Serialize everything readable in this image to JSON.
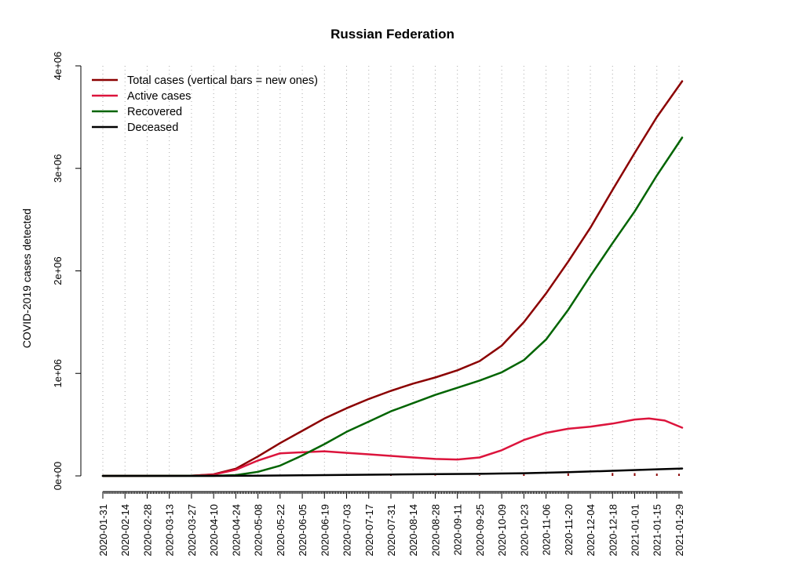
{
  "chart_data": {
    "type": "line",
    "title": "Russian Federation",
    "xlabel": "",
    "ylabel": "COVID-2019 cases detected",
    "xlim": [
      "2020-01-31",
      "2021-01-31"
    ],
    "ylim": [
      0,
      4000000
    ],
    "y_ticks": [
      {
        "value": 0,
        "label": "0e+00"
      },
      {
        "value": 1000000,
        "label": "1e+06"
      },
      {
        "value": 2000000,
        "label": "2e+06"
      },
      {
        "value": 3000000,
        "label": "3e+06"
      },
      {
        "value": 4000000,
        "label": "4e+06"
      }
    ],
    "x_tick_labels": [
      "2020-01-31",
      "2020-02-14",
      "2020-02-28",
      "2020-03-13",
      "2020-03-27",
      "2020-04-10",
      "2020-04-24",
      "2020-05-08",
      "2020-05-22",
      "2020-06-05",
      "2020-06-19",
      "2020-07-03",
      "2020-07-17",
      "2020-07-31",
      "2020-08-14",
      "2020-08-28",
      "2020-09-11",
      "2020-09-25",
      "2020-10-09",
      "2020-10-23",
      "2020-11-06",
      "2020-11-20",
      "2020-12-04",
      "2020-12-18",
      "2021-01-01",
      "2021-01-15",
      "2021-01-29"
    ],
    "grid": "vertical dotted",
    "legend_position": "top-left",
    "series": [
      {
        "name": "Total cases (vertical bars = new ones)",
        "color": "#8B0000",
        "x": [
          "2020-01-31",
          "2020-03-27",
          "2020-04-10",
          "2020-04-24",
          "2020-05-08",
          "2020-05-22",
          "2020-06-05",
          "2020-06-19",
          "2020-07-03",
          "2020-07-17",
          "2020-07-31",
          "2020-08-14",
          "2020-08-28",
          "2020-09-11",
          "2020-09-25",
          "2020-10-09",
          "2020-10-23",
          "2020-11-06",
          "2020-11-20",
          "2020-12-04",
          "2020-12-18",
          "2021-01-01",
          "2021-01-15",
          "2021-01-31"
        ],
        "y": [
          0,
          1500,
          15000,
          70000,
          190000,
          320000,
          440000,
          560000,
          660000,
          750000,
          830000,
          900000,
          960000,
          1030000,
          1120000,
          1270000,
          1500000,
          1780000,
          2090000,
          2420000,
          2790000,
          3150000,
          3500000,
          3850000
        ]
      },
      {
        "name": "Active cases",
        "color": "#DC143C",
        "x": [
          "2020-01-31",
          "2020-03-27",
          "2020-04-10",
          "2020-04-24",
          "2020-05-08",
          "2020-05-22",
          "2020-06-05",
          "2020-06-19",
          "2020-07-03",
          "2020-07-17",
          "2020-07-31",
          "2020-08-14",
          "2020-08-28",
          "2020-09-11",
          "2020-09-25",
          "2020-10-09",
          "2020-10-23",
          "2020-11-06",
          "2020-11-20",
          "2020-12-04",
          "2020-12-18",
          "2021-01-01",
          "2021-01-10",
          "2021-01-20",
          "2021-01-31"
        ],
        "y": [
          0,
          1300,
          13000,
          60000,
          150000,
          220000,
          230000,
          240000,
          225000,
          210000,
          195000,
          180000,
          165000,
          160000,
          180000,
          250000,
          350000,
          420000,
          460000,
          480000,
          510000,
          550000,
          560000,
          540000,
          470000
        ]
      },
      {
        "name": "Recovered",
        "color": "#006400",
        "x": [
          "2020-01-31",
          "2020-04-10",
          "2020-04-24",
          "2020-05-08",
          "2020-05-22",
          "2020-06-05",
          "2020-06-19",
          "2020-07-03",
          "2020-07-17",
          "2020-07-31",
          "2020-08-14",
          "2020-08-28",
          "2020-09-11",
          "2020-09-25",
          "2020-10-09",
          "2020-10-23",
          "2020-11-06",
          "2020-11-20",
          "2020-12-04",
          "2020-12-18",
          "2021-01-01",
          "2021-01-15",
          "2021-01-31"
        ],
        "y": [
          0,
          1000,
          8000,
          40000,
          100000,
          200000,
          310000,
          430000,
          530000,
          630000,
          710000,
          790000,
          860000,
          930000,
          1010000,
          1130000,
          1330000,
          1620000,
          1950000,
          2270000,
          2580000,
          2930000,
          3300000
        ]
      },
      {
        "name": "Deceased",
        "color": "#000000",
        "x": [
          "2020-01-31",
          "2020-04-10",
          "2020-05-08",
          "2020-06-05",
          "2020-07-03",
          "2020-07-31",
          "2020-08-28",
          "2020-09-25",
          "2020-10-23",
          "2020-11-20",
          "2020-12-18",
          "2021-01-15",
          "2021-01-31"
        ],
        "y": [
          0,
          100,
          2000,
          6000,
          10000,
          14000,
          17000,
          20000,
          26000,
          36000,
          50000,
          64000,
          72000
        ]
      }
    ],
    "new_cases_bars": {
      "color": "#8B0000",
      "x": [
        "2020-04-24",
        "2020-05-08",
        "2020-06-05",
        "2020-07-03",
        "2020-07-31",
        "2020-08-28",
        "2020-09-25",
        "2020-10-23",
        "2020-11-20",
        "2020-12-18",
        "2021-01-01",
        "2021-01-15",
        "2021-01-29"
      ],
      "y": [
        5000,
        10000,
        9000,
        7000,
        5500,
        5000,
        6000,
        15000,
        24000,
        28000,
        27000,
        22000,
        20000
      ]
    }
  }
}
